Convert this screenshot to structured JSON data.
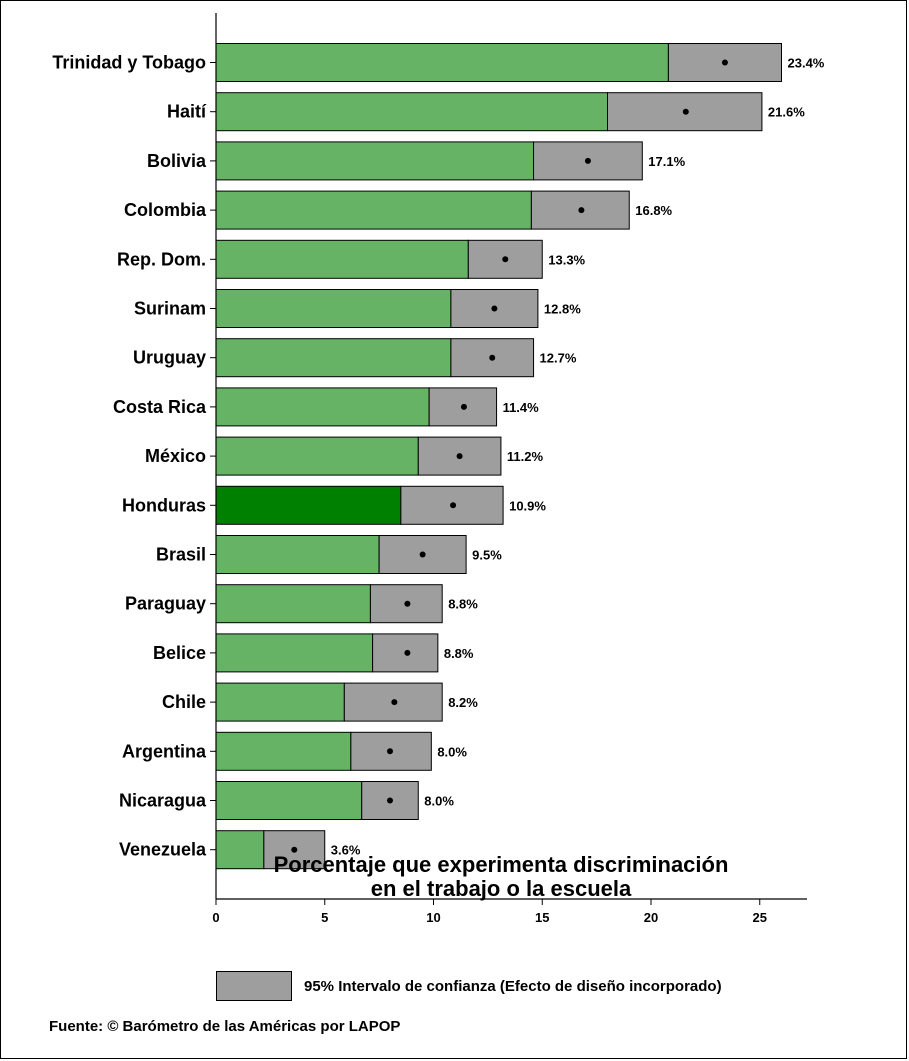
{
  "chart_data": {
    "type": "bar",
    "orientation": "horizontal",
    "xlabel_line1": "Porcentaje que experimenta discriminación",
    "xlabel_line2": "en el trabajo o la escuela",
    "xlim": [
      0,
      27
    ],
    "xticks": [
      0,
      5,
      10,
      15,
      20,
      25
    ],
    "colors": {
      "bar": "#66b366",
      "highlight": "#008000",
      "ci": "#9e9e9e"
    },
    "highlight_category": "Honduras",
    "categories": [
      "Trinidad y Tobago",
      "Haití",
      "Bolivia",
      "Colombia",
      "Rep. Dom.",
      "Surinam",
      "Uruguay",
      "Costa Rica",
      "México",
      "Honduras",
      "Brasil",
      "Paraguay",
      "Belice",
      "Chile",
      "Argentina",
      "Nicaragua",
      "Venezuela"
    ],
    "values": [
      23.4,
      21.6,
      17.1,
      16.8,
      13.3,
      12.8,
      12.7,
      11.4,
      11.2,
      10.9,
      9.5,
      8.8,
      8.8,
      8.2,
      8.0,
      8.0,
      3.6
    ],
    "value_labels": [
      "23.4%",
      "21.6%",
      "17.1%",
      "16.8%",
      "13.3%",
      "12.8%",
      "12.7%",
      "11.4%",
      "11.2%",
      "10.9%",
      "9.5%",
      "8.8%",
      "8.8%",
      "8.2%",
      "8.0%",
      "8.0%",
      "3.6%"
    ],
    "ci_lower": [
      20.8,
      18.0,
      14.6,
      14.5,
      11.6,
      10.8,
      10.8,
      9.8,
      9.3,
      8.5,
      7.5,
      7.1,
      7.2,
      5.9,
      6.2,
      6.7,
      2.2
    ],
    "ci_upper": [
      26.0,
      25.1,
      19.6,
      19.0,
      15.0,
      14.8,
      14.6,
      12.9,
      13.1,
      13.2,
      11.5,
      10.4,
      10.2,
      10.4,
      9.9,
      9.3,
      5.0
    ],
    "legend": "95% Intervalo de confianza (Efecto de diseño incorporado)"
  },
  "source": "Fuente: © Barómetro de las Américas por LAPOP"
}
